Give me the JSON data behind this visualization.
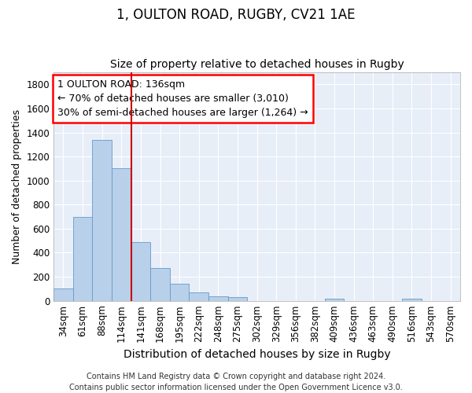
{
  "title1": "1, OULTON ROAD, RUGBY, CV21 1AE",
  "title2": "Size of property relative to detached houses in Rugby",
  "xlabel": "Distribution of detached houses by size in Rugby",
  "ylabel": "Number of detached properties",
  "bar_labels": [
    "34sqm",
    "61sqm",
    "88sqm",
    "114sqm",
    "141sqm",
    "168sqm",
    "195sqm",
    "222sqm",
    "248sqm",
    "275sqm",
    "302sqm",
    "329sqm",
    "356sqm",
    "382sqm",
    "409sqm",
    "436sqm",
    "463sqm",
    "490sqm",
    "516sqm",
    "543sqm",
    "570sqm"
  ],
  "bar_values": [
    100,
    700,
    1340,
    1100,
    490,
    270,
    140,
    70,
    35,
    30,
    0,
    0,
    0,
    0,
    15,
    0,
    0,
    0,
    15,
    0,
    0
  ],
  "bar_color": "#b8d0ea",
  "bar_edge_color": "#6699cc",
  "vline_color": "#cc0000",
  "vline_pos": 3.5,
  "ylim": [
    0,
    1900
  ],
  "yticks": [
    0,
    200,
    400,
    600,
    800,
    1000,
    1200,
    1400,
    1600,
    1800
  ],
  "annotation_line1": "1 OULTON ROAD: 136sqm",
  "annotation_line2": "← 70% of detached houses are smaller (3,010)",
  "annotation_line3": "30% of semi-detached houses are larger (1,264) →",
  "footer_text": "Contains HM Land Registry data © Crown copyright and database right 2024.\nContains public sector information licensed under the Open Government Licence v3.0.",
  "bg_color": "#ffffff",
  "plot_bg_color": "#e8eef8",
  "grid_color": "#ffffff",
  "title1_fontsize": 12,
  "title2_fontsize": 10,
  "xlabel_fontsize": 10,
  "ylabel_fontsize": 9,
  "tick_fontsize": 8.5,
  "annotation_fontsize": 9,
  "footer_fontsize": 7
}
